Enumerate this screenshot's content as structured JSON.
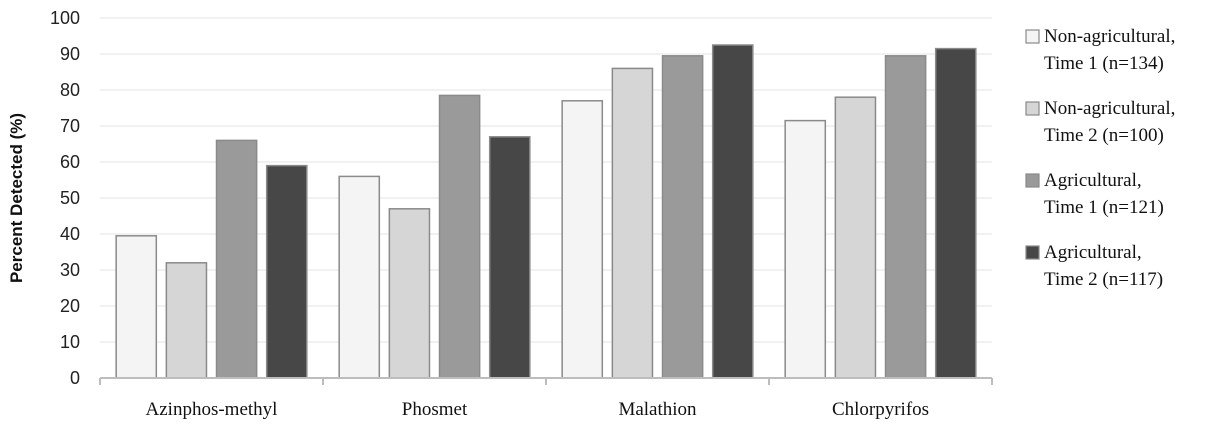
{
  "chart_data": {
    "type": "bar",
    "title": "",
    "xlabel": "",
    "ylabel": "Percent Detected (%)",
    "ylim": [
      0,
      100
    ],
    "yticks": [
      0,
      10,
      20,
      30,
      40,
      50,
      60,
      70,
      80,
      90,
      100
    ],
    "grid": true,
    "legend_position": "right",
    "categories": [
      "Azinphos-methyl",
      "Phosmet",
      "Malathion",
      "Chlorpyrifos"
    ],
    "series": [
      {
        "name": "Non-agricultural,\nTime 1 (n=134)",
        "line1": "Non-agricultural,",
        "line2": "Time 1 (n=134)",
        "color": "#f4f4f4",
        "values": [
          39.5,
          56,
          77,
          71.5
        ]
      },
      {
        "name": "Non-agricultural,\nTime 2 (n=100)",
        "line1": "Non-agricultural,",
        "line2": "Time 2 (n=100)",
        "color": "#d6d6d6",
        "values": [
          32,
          47,
          86,
          78
        ]
      },
      {
        "name": "Agricultural,\nTime 1 (n=121)",
        "line1": "Agricultural,",
        "line2": "Time 1 (n=121)",
        "color": "#9a9a9a",
        "values": [
          66,
          78.5,
          89.5,
          89.5
        ]
      },
      {
        "name": "Agricultural,\nTime 2 (n=117)",
        "line1": "Agricultural,",
        "line2": "Time 2 (n=117)",
        "color": "#474747",
        "values": [
          59,
          67,
          92.5,
          91.5
        ]
      }
    ]
  }
}
